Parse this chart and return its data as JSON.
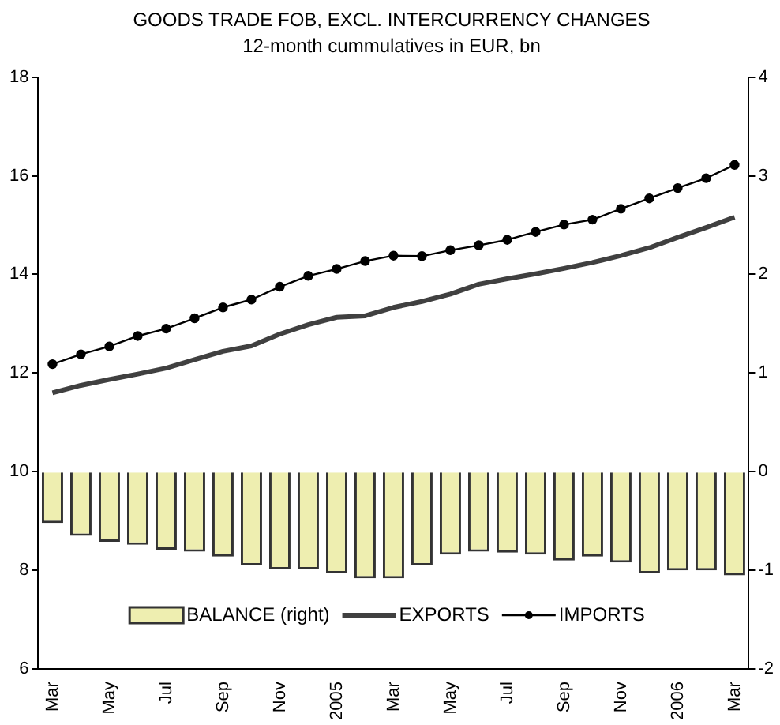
{
  "chart_data": {
    "type": "line",
    "title": "GOODS TRADE FOB, EXCL. INTERCURRENCY CHANGES",
    "subtitle": "12-month cummulatives in EUR, bn",
    "categories": [
      "Mar",
      null,
      "May",
      null,
      "Jul",
      null,
      "Sep",
      null,
      "Nov",
      null,
      "2005",
      null,
      "Mar",
      null,
      "May",
      null,
      "Jul",
      null,
      "Sep",
      null,
      "Nov",
      null,
      "2006",
      null,
      "Mar"
    ],
    "series": [
      {
        "name": "BALANCE (right)",
        "type": "bar",
        "axis": "y2",
        "color": "#eeeeb0",
        "values": [
          -0.52,
          -0.65,
          -0.71,
          -0.74,
          -0.79,
          -0.81,
          -0.86,
          -0.95,
          -0.99,
          -0.99,
          -1.03,
          -1.08,
          -1.08,
          -0.95,
          -0.84,
          -0.81,
          -0.82,
          -0.84,
          -0.9,
          -0.86,
          -0.92,
          -1.03,
          -1.0,
          -1.0,
          -1.05
        ]
      },
      {
        "name": "EXPORTS",
        "marker": "none",
        "color": "#404040",
        "values": [
          11.6,
          11.75,
          11.87,
          11.98,
          12.1,
          12.27,
          12.44,
          12.55,
          12.79,
          12.98,
          13.13,
          13.16,
          13.33,
          13.45,
          13.6,
          13.8,
          13.91,
          14.01,
          14.12,
          14.24,
          14.38,
          14.54,
          14.75,
          14.95,
          15.16
        ]
      },
      {
        "name": "IMPORTS",
        "marker": "circle",
        "color": "#000000",
        "values": [
          12.18,
          12.38,
          12.54,
          12.75,
          12.9,
          13.11,
          13.33,
          13.49,
          13.75,
          13.97,
          14.11,
          14.27,
          14.38,
          14.37,
          14.49,
          14.59,
          14.7,
          14.86,
          15.01,
          15.11,
          15.33,
          15.54,
          15.75,
          15.95,
          16.22
        ]
      }
    ],
    "ylim": [
      6,
      18
    ],
    "yticks": [
      6,
      8,
      10,
      12,
      14,
      16,
      18
    ],
    "y2lim": [
      -2,
      4
    ],
    "y2ticks": [
      -2,
      -1,
      0,
      1,
      2,
      3,
      4
    ],
    "legend": "bottom",
    "grid": false
  }
}
